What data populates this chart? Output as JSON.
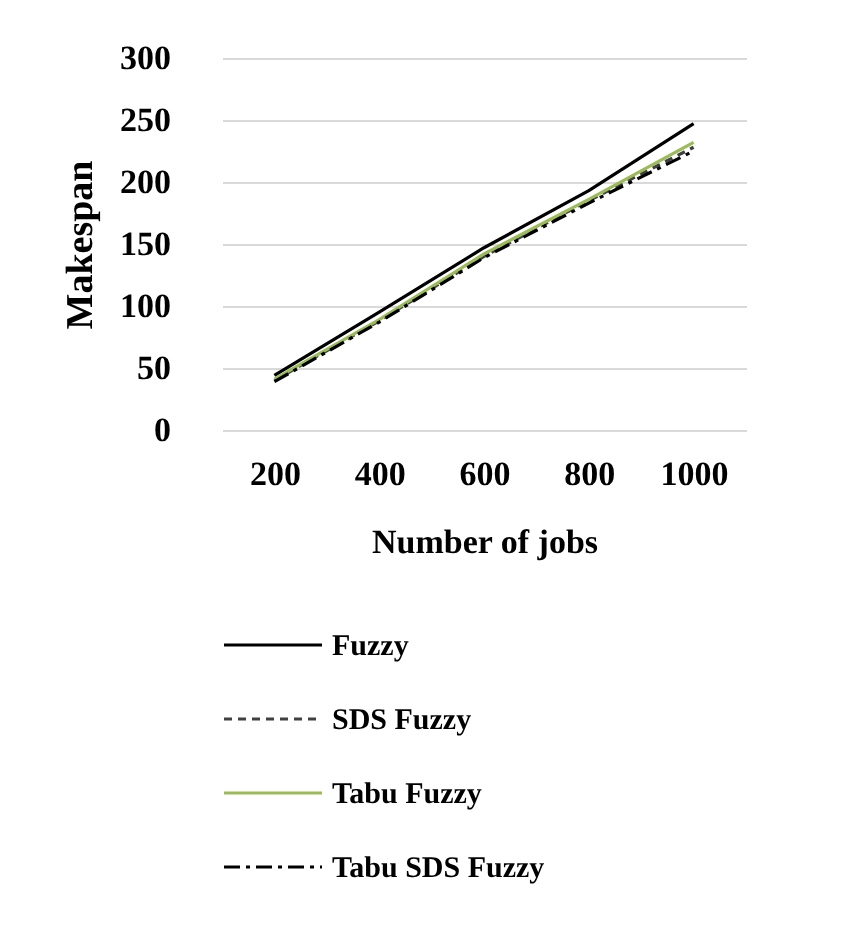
{
  "chart_data": {
    "type": "line",
    "xlabel": "Number of jobs",
    "ylabel": "Makespan",
    "categories": [
      "200",
      "400",
      "600",
      "800",
      "1000"
    ],
    "series": [
      {
        "name": "Fuzzy",
        "color": "#000000",
        "line_style": "solid",
        "values": [
          44,
          95,
          147,
          193,
          247
        ]
      },
      {
        "name": "SDS Fuzzy",
        "color": "#404040",
        "line_style": "dashed",
        "values": [
          40,
          88,
          140,
          185,
          228
        ]
      },
      {
        "name": "Tabu Fuzzy",
        "color": "#9bbb59",
        "line_style": "solid",
        "values": [
          41,
          89,
          142,
          186,
          232
        ]
      },
      {
        "name": "Tabu SDS Fuzzy",
        "color": "#000000",
        "line_style": "dashdot",
        "values": [
          39,
          87,
          139,
          183,
          225
        ]
      }
    ],
    "ylim": [
      0,
      300
    ],
    "yticks": [
      0,
      50,
      100,
      150,
      200,
      250,
      300
    ],
    "grid": "y",
    "legend": "bottom",
    "marker": "none"
  }
}
